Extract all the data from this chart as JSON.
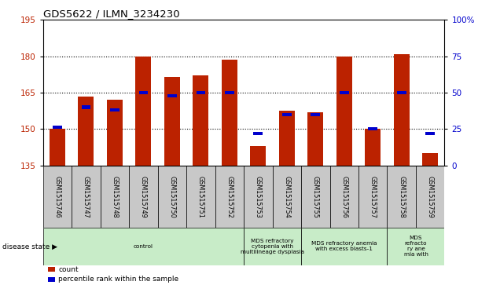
{
  "title": "GDS5622 / ILMN_3234230",
  "samples": [
    "GSM1515746",
    "GSM1515747",
    "GSM1515748",
    "GSM1515749",
    "GSM1515750",
    "GSM1515751",
    "GSM1515752",
    "GSM1515753",
    "GSM1515754",
    "GSM1515755",
    "GSM1515756",
    "GSM1515757",
    "GSM1515758",
    "GSM1515759"
  ],
  "counts": [
    150.0,
    163.5,
    162.0,
    180.0,
    171.5,
    172.0,
    178.5,
    143.0,
    157.5,
    157.0,
    180.0,
    150.0,
    181.0,
    140.0
  ],
  "percentiles": [
    26,
    40,
    38,
    50,
    48,
    50,
    50,
    22,
    35,
    35,
    50,
    25,
    50,
    22
  ],
  "ylim_left": [
    135,
    195
  ],
  "ylim_right": [
    0,
    100
  ],
  "yticks_left": [
    135,
    150,
    165,
    180,
    195
  ],
  "yticks_right": [
    0,
    25,
    50,
    75,
    100
  ],
  "ytick_right_labels": [
    "0",
    "25",
    "50",
    "75",
    "100%"
  ],
  "bar_color": "#bb2200",
  "percentile_color": "#0000cc",
  "bg_plot": "#ffffff",
  "bg_sample_label": "#c8c8c8",
  "disease_groups": [
    {
      "label": "control",
      "start": 0,
      "end": 7,
      "color": "#c8ecc8"
    },
    {
      "label": "MDS refractory\ncytopenia with\nmultilineage dysplasia",
      "start": 7,
      "end": 9,
      "color": "#c8ecc8"
    },
    {
      "label": "MDS refractory anemia\nwith excess blasts-1",
      "start": 9,
      "end": 12,
      "color": "#c8ecc8"
    },
    {
      "label": "MDS\nrefracto\nry ane\nmia with",
      "start": 12,
      "end": 14,
      "color": "#c8ecc8"
    }
  ],
  "legend_count_label": "count",
  "legend_percentile_label": "percentile rank within the sample",
  "disease_state_label": "disease state"
}
